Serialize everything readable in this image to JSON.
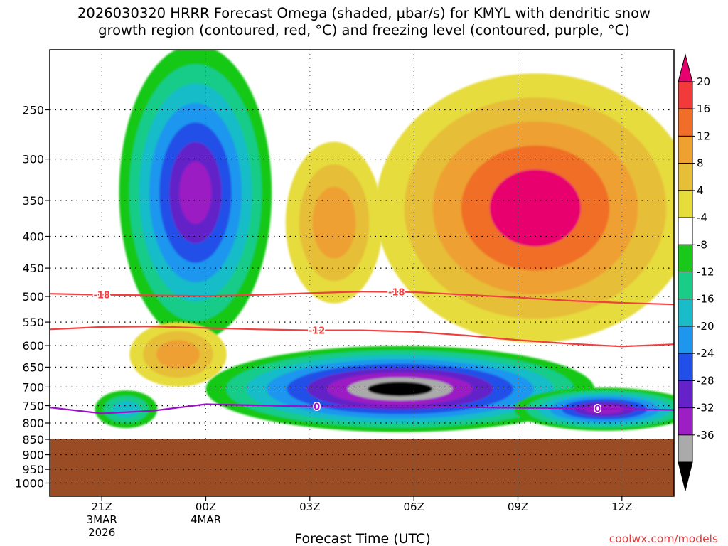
{
  "header": {
    "title_line1": "2026030320 HRRR Forecast Omega (shaded, μbar/s) for KMYL with dendritic snow",
    "title_line2": "growth region (contoured, red, °C) and freezing level (contoured, purple, °C)"
  },
  "credit": "coolwx.com/models",
  "chart_data": {
    "type": "heatmap",
    "title": "2026030320 HRRR Forecast Omega (shaded, μbar/s) for KMYL with dendritic snow growth region (contoured, red, °C) and freezing level (contoured, purple, °C)",
    "xlabel": "Forecast Time (UTC)",
    "ylabel": "",
    "y_axis": {
      "scale": "log-pressure (inverted)",
      "unit": "hPa",
      "ylim": [
        1050,
        200
      ],
      "ticks": [
        250,
        300,
        350,
        400,
        450,
        500,
        550,
        600,
        650,
        700,
        750,
        800,
        850,
        900,
        950,
        1000
      ]
    },
    "x_axis": {
      "unit": "forecast hour",
      "xlim": [
        -1.5,
        16.5
      ],
      "ticks": [
        {
          "hour": 0,
          "label": "21Z",
          "sub1": "3MAR",
          "sub2": "2026"
        },
        {
          "hour": 3,
          "label": "00Z",
          "sub1": "4MAR",
          "sub2": ""
        },
        {
          "hour": 6,
          "label": "03Z",
          "sub1": "",
          "sub2": ""
        },
        {
          "hour": 9,
          "label": "06Z",
          "sub1": "",
          "sub2": ""
        },
        {
          "hour": 12,
          "label": "09Z",
          "sub1": "",
          "sub2": ""
        },
        {
          "hour": 15,
          "label": "12Z",
          "sub1": "",
          "sub2": ""
        }
      ]
    },
    "colorbar": {
      "labels": [
        "20",
        "16",
        "12",
        "8",
        "4",
        "-4",
        "-8",
        "-12",
        "-16",
        "-20",
        "-24",
        "-28",
        "-32",
        "-36"
      ],
      "colors": [
        "#e8006e",
        "#f23a3a",
        "#f06e28",
        "#eea030",
        "#e6be38",
        "#e6dc3c",
        "#ffffff",
        "#19c819",
        "#19cc88",
        "#19bcc8",
        "#1e96ee",
        "#2050e8",
        "#6422c8",
        "#9c1ec4",
        "#aaaaaa",
        "#000000"
      ],
      "over_color": "#e8006e",
      "under_color": "#000000"
    },
    "omega_blobs": [
      {
        "name": "upper-ascent",
        "hour": 2.7,
        "p": 340,
        "rh": 2.2,
        "rp": 0.55,
        "levels": [
          -4,
          -8,
          -12,
          -16,
          -20,
          -24,
          -28
        ]
      },
      {
        "name": "lower-ascent",
        "hour": 8.6,
        "p": 705,
        "rh": 5.6,
        "rp": 0.16,
        "levels": [
          -4,
          -8,
          -12,
          -16,
          -20,
          -24,
          -28,
          -32,
          -36
        ]
      },
      {
        "name": "lower-ascent-east",
        "hour": 14.5,
        "p": 760,
        "rh": 2.6,
        "rp": 0.08,
        "levels": [
          -4,
          -8,
          -12,
          -16,
          -20,
          -24,
          -28
        ]
      },
      {
        "name": "left-low-ascent",
        "hour": 0.7,
        "p": 760,
        "rh": 0.9,
        "rp": 0.07,
        "levels": [
          -4,
          -8,
          -12
        ]
      },
      {
        "name": "upper-descent",
        "hour": 12.5,
        "p": 360,
        "rh": 4.6,
        "rp": 0.5,
        "levels": [
          4,
          8,
          12,
          16,
          20
        ]
      },
      {
        "name": "mid-descent",
        "hour": 6.7,
        "p": 380,
        "rh": 1.4,
        "rp": 0.3,
        "levels": [
          4,
          8,
          12
        ]
      },
      {
        "name": "low-descent",
        "hour": 2.2,
        "p": 620,
        "rh": 1.4,
        "rp": 0.12,
        "levels": [
          4,
          8,
          12
        ]
      }
    ],
    "contours": [
      {
        "name": "dgz-minus18",
        "label": "-18",
        "color": "#f04040",
        "hours": [
          -1.5,
          0,
          1.5,
          3,
          4.5,
          6,
          7.5,
          9,
          10.5,
          12,
          13.5,
          15,
          16.5
        ],
        "pressure": [
          495,
          497,
          498,
          499,
          497,
          494,
          491,
          492,
          497,
          502,
          508,
          512,
          515
        ],
        "label_hours": [
          0,
          8.5
        ]
      },
      {
        "name": "dgz-minus12",
        "label": "-12",
        "color": "#f04040",
        "hours": [
          -1.5,
          0,
          1.5,
          3,
          4.5,
          6,
          7.5,
          9,
          10.5,
          12,
          13.5,
          15,
          16.5
        ],
        "pressure": [
          565,
          560,
          559,
          562,
          565,
          567,
          567,
          570,
          578,
          588,
          596,
          602,
          597
        ],
        "label_hours": [
          6.2
        ]
      },
      {
        "name": "freezing-level-0",
        "label": "0",
        "color": "#9a10c8",
        "hours": [
          -1.5,
          0,
          1.5,
          3,
          4.5,
          6,
          7.5,
          9,
          10.5,
          12,
          13.5,
          15,
          16.5
        ],
        "pressure": [
          755,
          772,
          764,
          746,
          749,
          752,
          752,
          752,
          754,
          756,
          757,
          759,
          762
        ],
        "label_hours": [
          6.2,
          14.3
        ]
      }
    ],
    "terrain": {
      "surface_pressure": 850,
      "color": "#9a4c25"
    }
  }
}
